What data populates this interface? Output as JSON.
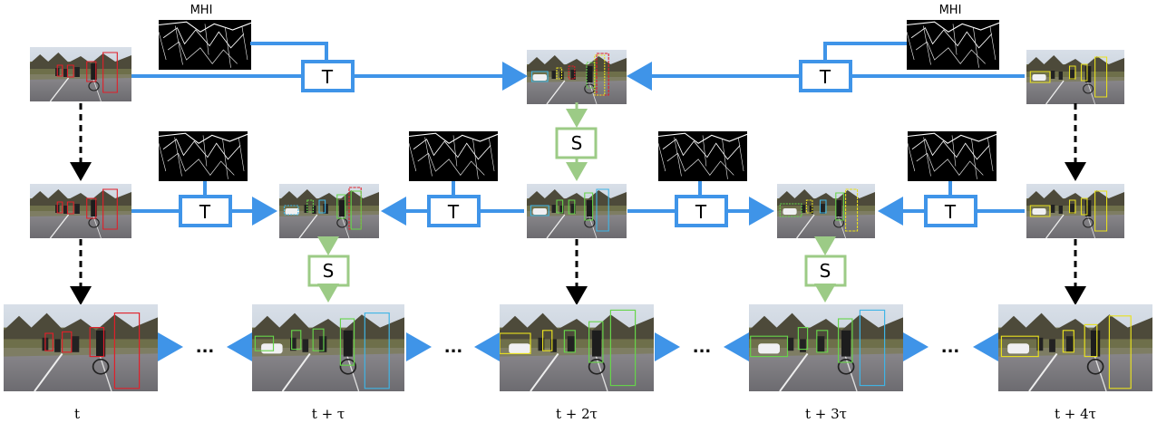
{
  "labels": {
    "mhi_left": "MHI",
    "mhi_right": "MHI",
    "t_op": "T",
    "s_op": "S",
    "ellipsis": "...",
    "time_t": "t",
    "time_1": "t + τ",
    "time_2": "t + 2τ",
    "time_3": "t + 3τ",
    "time_4": "t + 4τ"
  },
  "colors": {
    "t_blue": "#3f94e8",
    "s_green": "#9ccb86",
    "red_box": "#e0202a",
    "yellow_box": "#e8e020",
    "green_box": "#66d44a",
    "cyan_box": "#3fb5e6"
  }
}
